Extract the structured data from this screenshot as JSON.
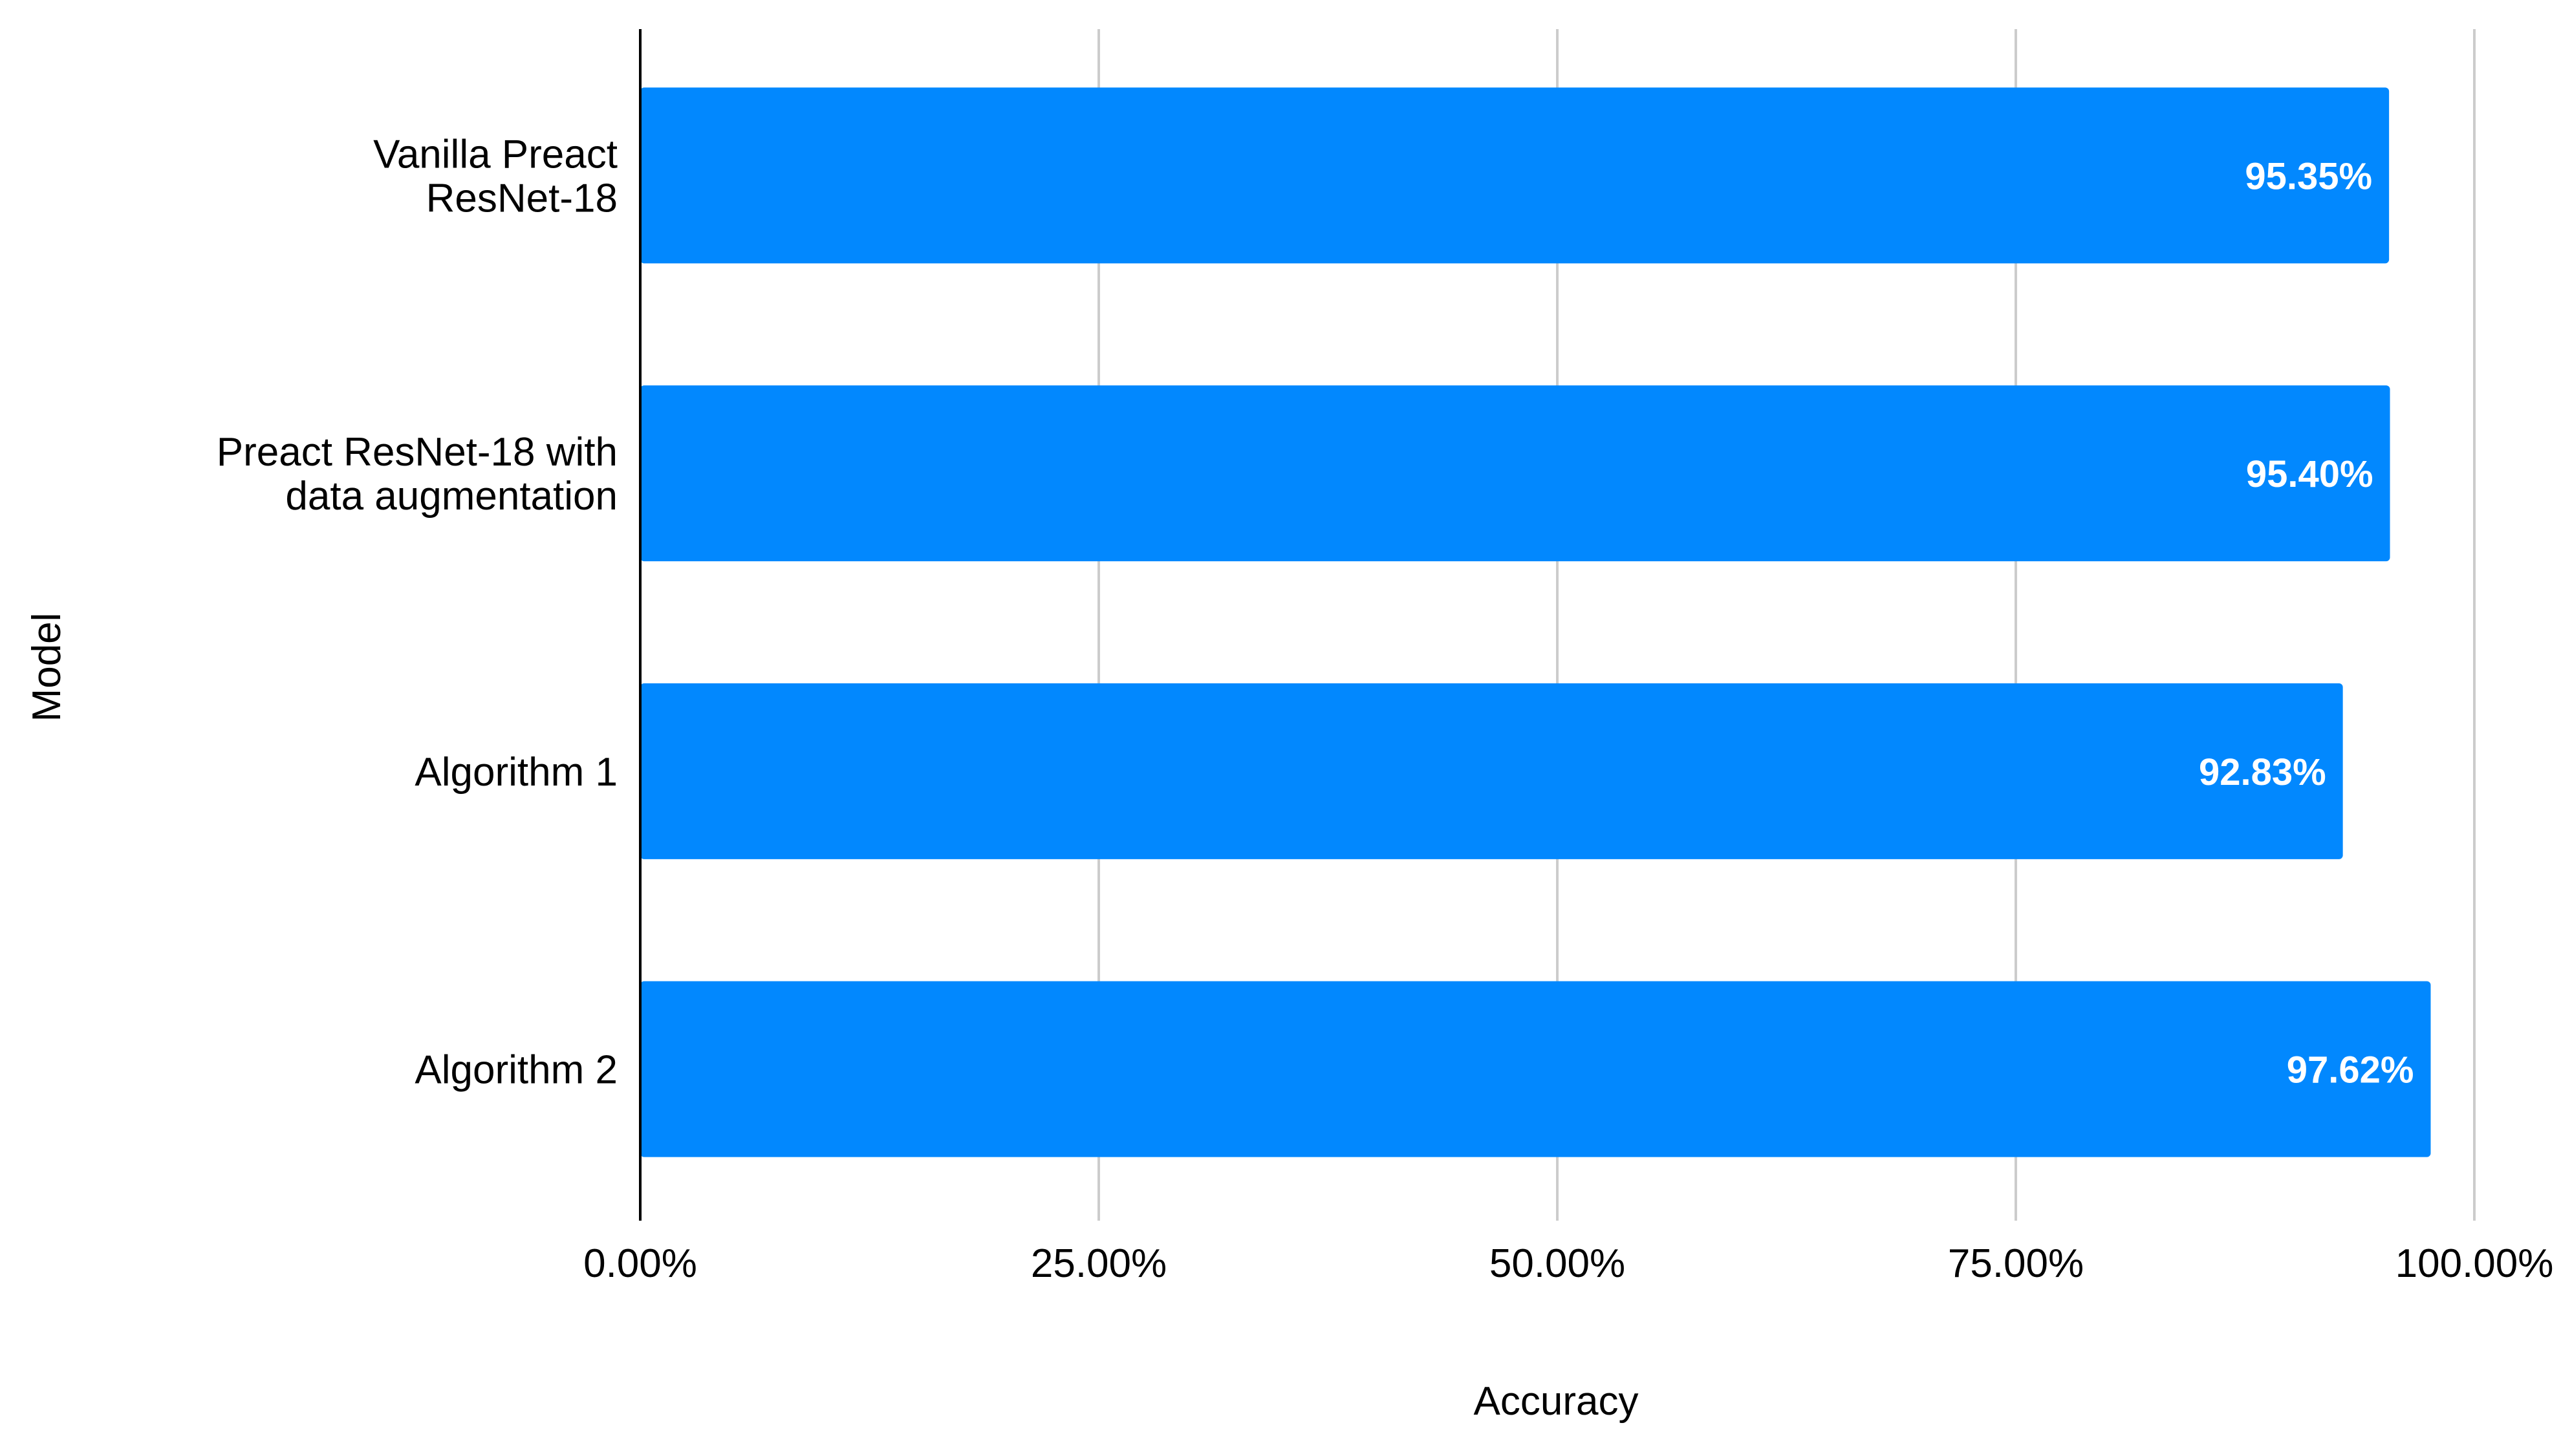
{
  "chart_data": {
    "type": "bar",
    "orientation": "horizontal",
    "categories": [
      [
        "Vanilla Preact",
        "ResNet-18"
      ],
      [
        "Preact ResNet-18 with",
        "data augmentation"
      ],
      [
        "Algorithm 1"
      ],
      [
        "Algorithm 2"
      ]
    ],
    "values": [
      95.35,
      95.4,
      92.83,
      97.62
    ],
    "value_labels": [
      "95.35%",
      "95.40%",
      "92.83%",
      "97.62%"
    ],
    "xlim": [
      0,
      100
    ],
    "x_ticks": [
      0,
      25,
      50,
      75,
      100
    ],
    "x_tick_labels": [
      "0.00%",
      "25.00%",
      "50.00%",
      "75.00%",
      "100.00%"
    ],
    "xlabel": "Accuracy",
    "ylabel": "Model",
    "title": "",
    "grid": "vertical",
    "legend": "none",
    "colors": {
      "bar": "#0288fe",
      "grid": "#cccccc",
      "axis": "#000000",
      "text": "#000000",
      "value_label": "#ffffff"
    }
  }
}
